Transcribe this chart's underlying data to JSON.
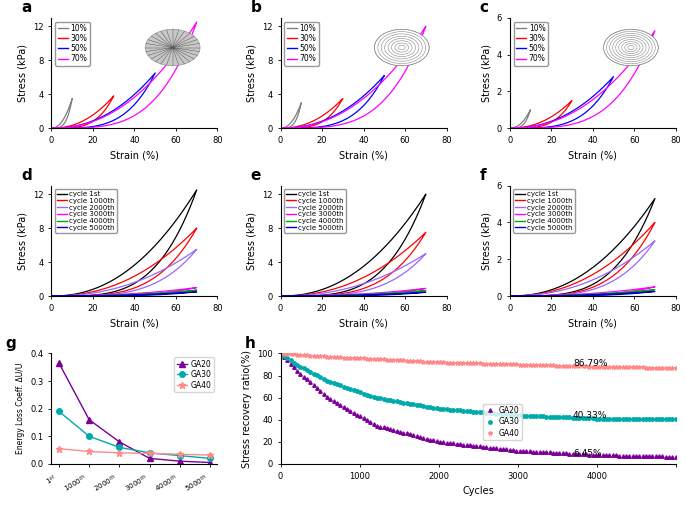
{
  "strain_colors_10": "#808080",
  "strain_colors_30": "#FF0000",
  "strain_colors_50": "#0000FF",
  "strain_colors_70": "#FF00FF",
  "cycle_colors_1st": "#000000",
  "cycle_colors_1000th": "#FF0000",
  "cycle_colors_2000th": "#9966FF",
  "cycle_colors_3000th": "#FF00FF",
  "cycle_colors_4000th": "#00AA00",
  "cycle_colors_5000th": "#0000CC",
  "ga20_color": "#7B0099",
  "ga30_color": "#00AAAA",
  "ga40_color": "#FF8888",
  "bg_color": "#FFFFFF",
  "label_fontsize": 7,
  "tick_fontsize": 6,
  "panel_label_fontsize": 11,
  "legend_fontsize": 5.5,
  "stress_maxes_abc_a": [
    3.5,
    3.8,
    6.5,
    12.5
  ],
  "stress_maxes_abc_b": [
    3.0,
    3.5,
    6.2,
    12.0
  ],
  "stress_maxes_abc_c": [
    1.0,
    1.5,
    2.8,
    5.3
  ],
  "stress_maxes_cycle_d": [
    12.5,
    8.0,
    5.5,
    1.0,
    0.7,
    0.5
  ],
  "stress_maxes_cycle_e": [
    12.0,
    7.5,
    5.0,
    0.9,
    0.65,
    0.45
  ],
  "stress_maxes_cycle_f": [
    5.3,
    4.0,
    3.0,
    0.5,
    0.35,
    0.25
  ],
  "panel_ylim_a": [
    0,
    13
  ],
  "panel_yticks_a": [
    0,
    4,
    8,
    12
  ],
  "panel_ylim_b": [
    0,
    13
  ],
  "panel_yticks_b": [
    0,
    4,
    8,
    12
  ],
  "panel_ylim_c": [
    0,
    6
  ],
  "panel_yticks_c": [
    0,
    2,
    4,
    6
  ],
  "panel_ylim_d": [
    0,
    13
  ],
  "panel_yticks_d": [
    0,
    4,
    8,
    12
  ],
  "panel_ylim_e": [
    0,
    13
  ],
  "panel_yticks_e": [
    0,
    4,
    8,
    12
  ],
  "panel_ylim_f": [
    0,
    6
  ],
  "panel_yticks_f": [
    0,
    2,
    4,
    6
  ],
  "ga20_coeff": [
    0.365,
    0.16,
    0.08,
    0.02,
    0.01,
    0.005
  ],
  "ga30_coeff": [
    0.19,
    0.1,
    0.06,
    0.04,
    0.03,
    0.02
  ],
  "ga40_coeff": [
    0.055,
    0.045,
    0.04,
    0.038,
    0.035,
    0.032
  ],
  "ga20_recovery_pts": [
    100,
    85,
    60,
    35,
    20,
    12,
    8,
    6.45
  ],
  "ga30_recovery_pts": [
    100,
    90,
    75,
    60,
    50,
    44,
    41,
    40.33
  ],
  "ga40_recovery_pts": [
    100,
    99,
    97,
    95,
    92,
    90,
    88,
    86.79
  ],
  "recovery_cycles": [
    0,
    200,
    600,
    1200,
    2000,
    3000,
    4000,
    5000
  ]
}
